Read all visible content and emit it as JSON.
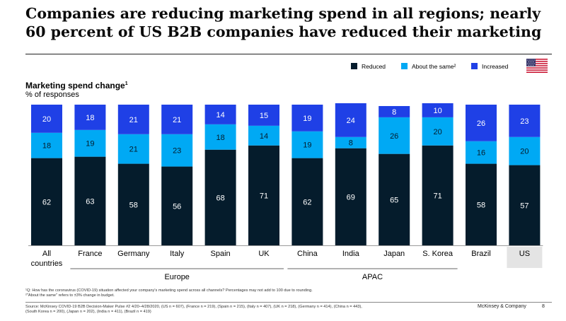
{
  "header": {
    "title_line1": "Companies are reducing marketing spend in all regions; nearly",
    "title_line2": "60 percent of US B2B companies have reduced their marketing"
  },
  "legend": {
    "items": [
      {
        "label": "Reduced",
        "color": "#051c2c"
      },
      {
        "label": "About the same²",
        "color": "#00a9f4"
      },
      {
        "label": "Increased",
        "color": "#1f40e6"
      }
    ]
  },
  "flag_icon": "us-flag-icon",
  "chart_title": "Marketing spend change",
  "chart_title_sup": "1",
  "chart_subtitle": "% of responses",
  "chart_data": {
    "type": "bar",
    "stacked": true,
    "categories": [
      "All countries",
      "France",
      "Germany",
      "Italy",
      "Spain",
      "UK",
      "China",
      "India",
      "Japan",
      "S. Korea",
      "Brazil",
      "US"
    ],
    "category_lines": [
      [
        "All",
        "countries"
      ],
      [
        "France"
      ],
      [
        "Germany"
      ],
      [
        "Italy"
      ],
      [
        "Spain"
      ],
      [
        "UK"
      ],
      [
        "China"
      ],
      [
        "India"
      ],
      [
        "Japan"
      ],
      [
        "S. Korea"
      ],
      [
        "Brazil"
      ],
      [
        "US"
      ]
    ],
    "series": [
      {
        "name": "Reduced",
        "color": "#051c2c",
        "values": [
          62,
          63,
          58,
          56,
          68,
          71,
          62,
          69,
          65,
          71,
          58,
          57
        ]
      },
      {
        "name": "About the same²",
        "color": "#00a9f4",
        "values": [
          18,
          19,
          21,
          23,
          18,
          14,
          19,
          8,
          26,
          20,
          16,
          20
        ]
      },
      {
        "name": "Increased",
        "color": "#1f40e6",
        "values": [
          20,
          18,
          21,
          21,
          14,
          15,
          19,
          24,
          8,
          10,
          26,
          23
        ]
      }
    ],
    "groups": [
      {
        "label": "Europe",
        "from": 1,
        "to": 5
      },
      {
        "label": "APAC",
        "from": 6,
        "to": 9
      }
    ],
    "highlight_category": "US",
    "ylim": [
      0,
      100
    ],
    "grid": false
  },
  "footnotes": {
    "note1": "¹Q: How has the coronavirus (COVID-19) situation affected your company's marketing spend across all channels? Percentages may not add to 100 due to rounding.",
    "note2": "²\"About the same\" refers to ±3% change in budget.",
    "source1": "Source: McKinsey COVID-19 B2B Decision-Maker Pulse #2 4/20–4/28/2020, (US n = 607), (France n = 219), (Spain n = 215), (Italy n = 407), (UK n = 218), (Germany n = 414), (China n = 443),",
    "source2": "(South Korea n = 200), (Japan n = 202), (India n = 411), (Brazil n = 419)"
  },
  "footer": {
    "brand": "McKinsey & Company",
    "page": "8"
  }
}
